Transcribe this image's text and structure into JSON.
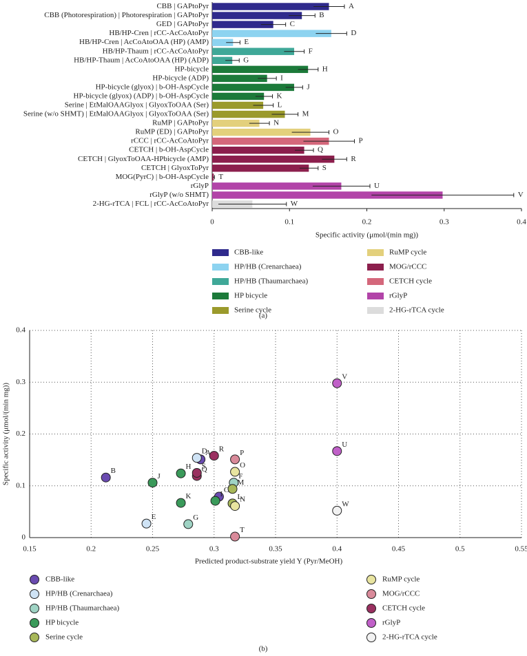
{
  "chart_data": [
    {
      "type": "bar",
      "orientation": "horizontal",
      "caption": "(a)",
      "categories": [
        "CBB | GAPtoPyr",
        "CBB (Photorespiration) | Photorespiration | GAPtoPyr",
        "GED | GAPtoPyr",
        "HB/HP-Cren | rCC-AcCoAtoPyr",
        "HB/HP-Cren | AcCoAtoOAA (HP) (AMP)",
        "HB/HP-Thaum | rCC-AcCoAtoPyr",
        "HB/HP-Thaum | AcCoAtoOAA (HP) (ADP)",
        "HP-bicycle",
        "HP-bicycle (ADP)",
        "HP-bicycle (glyox) | b-OH-AspCycle",
        "HP-bicycle (glyox) (ADP) | b-OH-AspCycle",
        "Serine | EtMalOAAGlyox | GlyoxToOAA (Ser)",
        "Serine (w/o SHMT) | EtMalOAAGlyox | GlyoxToOAA (Ser)",
        "RuMP | GAPtoPyr",
        "RuMP (ED) | GAPtoPyr",
        "rCCC | rCC-AcCoAtoPyr",
        "CETCH | b-OH-AspCycle",
        "CETCH | GlyoxToOAA-HPbicycle (AMP)",
        "CETCH | GlyoxToPyr",
        "MOG(PyrC) | b-OH-AspCycle",
        "rGlyP",
        "rGlyP (w/o SHMT)",
        "2-HG-rTCA | FCL | rCC-AcCoAtoPyr"
      ],
      "values": [
        0.151,
        0.116,
        0.079,
        0.154,
        0.027,
        0.106,
        0.026,
        0.124,
        0.071,
        0.106,
        0.067,
        0.066,
        0.094,
        0.061,
        0.127,
        0.151,
        0.119,
        0.158,
        0.125,
        0.002,
        0.167,
        0.298,
        0.052
      ],
      "errors": [
        0.02,
        0.017,
        0.016,
        0.02,
        0.009,
        0.013,
        0.009,
        0.013,
        0.012,
        0.011,
        0.011,
        0.013,
        0.017,
        0.013,
        0.024,
        0.033,
        0.012,
        0.016,
        0.012,
        0.001,
        0.037,
        0.092,
        0.044
      ],
      "letters": [
        "A",
        "B",
        "C",
        "D",
        "E",
        "F",
        "G",
        "H",
        "I",
        "J",
        "K",
        "L",
        "M",
        "N",
        "O",
        "P",
        "Q",
        "R",
        "S",
        "T",
        "U",
        "V",
        "W"
      ],
      "colors": [
        "#2f2a8c",
        "#2f2a8c",
        "#2f2a8c",
        "#8dd3f0",
        "#8dd3f0",
        "#3fa898",
        "#3fa898",
        "#1c7a3a",
        "#1c7a3a",
        "#1c7a3a",
        "#1c7a3a",
        "#9b9a2c",
        "#9b9a2c",
        "#e3d07c",
        "#e3d07c",
        "#d4677b",
        "#8c1f4d",
        "#8c1f4d",
        "#8c1f4d",
        "#8c1f4d",
        "#b244a8",
        "#b244a8",
        "#dcdcdc"
      ],
      "xlabel": "Specific activity (μmol/(min mg))",
      "xlim": [
        0,
        0.4
      ],
      "xticks": [
        0,
        0.1,
        0.2,
        0.3,
        0.4
      ],
      "legend": [
        {
          "name": "CBB-like",
          "color": "#2f2a8c"
        },
        {
          "name": "HP/HB (Crenarchaea)",
          "color": "#8dd3f0"
        },
        {
          "name": "HP/HB (Thaumarchaea)",
          "color": "#3fa898"
        },
        {
          "name": "HP bicycle",
          "color": "#1c7a3a"
        },
        {
          "name": "Serine cycle",
          "color": "#9b9a2c"
        },
        {
          "name": "RuMP cycle",
          "color": "#e3d07c"
        },
        {
          "name": "MOG/rCCC",
          "color": "#8c1f4d"
        },
        {
          "name": "CETCH cycle",
          "color": "#d4677b"
        },
        {
          "name": "rGlyP",
          "color": "#b244a8"
        },
        {
          "name": "2-HG-rTCA cycle",
          "color": "#dcdcdc"
        }
      ]
    },
    {
      "type": "scatter",
      "caption": "(b)",
      "xlabel": "Predicted product-substrate yield Y (Pyr/MeOH)",
      "ylabel": "Specific activity (μmol/(min mg))",
      "xlim": [
        0.15,
        0.55
      ],
      "xticks": [
        0.15,
        0.2,
        0.25,
        0.3,
        0.35,
        0.4,
        0.45,
        0.5,
        0.55
      ],
      "ylim": [
        0,
        0.4
      ],
      "yticks": [
        0,
        0.1,
        0.2,
        0.3,
        0.4
      ],
      "grid": true,
      "series": [
        {
          "name": "CBB-like",
          "color": "#6a4bb0",
          "labels": [
            "A",
            "B",
            "C"
          ],
          "x": [
            0.289,
            0.212,
            0.304
          ],
          "values": [
            0.151,
            0.116,
            0.079
          ]
        },
        {
          "name": "HP/HB (Crenarchaea)",
          "color": "#cfe3f5",
          "labels": [
            "D",
            "E"
          ],
          "x": [
            0.286,
            0.245
          ],
          "values": [
            0.154,
            0.027
          ]
        },
        {
          "name": "HP/HB (Thaumarchaea)",
          "color": "#9fd3c4",
          "labels": [
            "F",
            "G"
          ],
          "x": [
            0.316,
            0.279
          ],
          "values": [
            0.106,
            0.026
          ]
        },
        {
          "name": "HP bicycle",
          "color": "#3a9a5a",
          "labels": [
            "H",
            "I",
            "J",
            "K"
          ],
          "x": [
            0.273,
            0.301,
            0.25,
            0.273
          ],
          "values": [
            0.124,
            0.071,
            0.106,
            0.067
          ]
        },
        {
          "name": "Serine cycle",
          "color": "#a8b85a",
          "labels": [
            "L",
            "M"
          ],
          "x": [
            0.315,
            0.315
          ],
          "values": [
            0.066,
            0.094
          ]
        },
        {
          "name": "RuMP cycle",
          "color": "#e8e4a0",
          "labels": [
            "N",
            "O"
          ],
          "x": [
            0.317,
            0.317
          ],
          "values": [
            0.061,
            0.127
          ]
        },
        {
          "name": "MOG/rCCC",
          "color": "#d98a9a",
          "labels": [
            "P",
            "T"
          ],
          "x": [
            0.317,
            0.317
          ],
          "values": [
            0.151,
            0.002
          ]
        },
        {
          "name": "CETCH cycle",
          "color": "#9a3060",
          "labels": [
            "Q",
            "R",
            "S"
          ],
          "x": [
            0.286,
            0.3,
            0.286
          ],
          "values": [
            0.119,
            0.158,
            0.125
          ]
        },
        {
          "name": "rGlyP",
          "color": "#c060c8",
          "labels": [
            "U",
            "V"
          ],
          "x": [
            0.4,
            0.4
          ],
          "values": [
            0.167,
            0.298
          ]
        },
        {
          "name": "2-HG-rTCA cycle",
          "color": "#f2f2f2",
          "labels": [
            "W"
          ],
          "x": [
            0.4
          ],
          "values": [
            0.052
          ]
        }
      ]
    }
  ]
}
